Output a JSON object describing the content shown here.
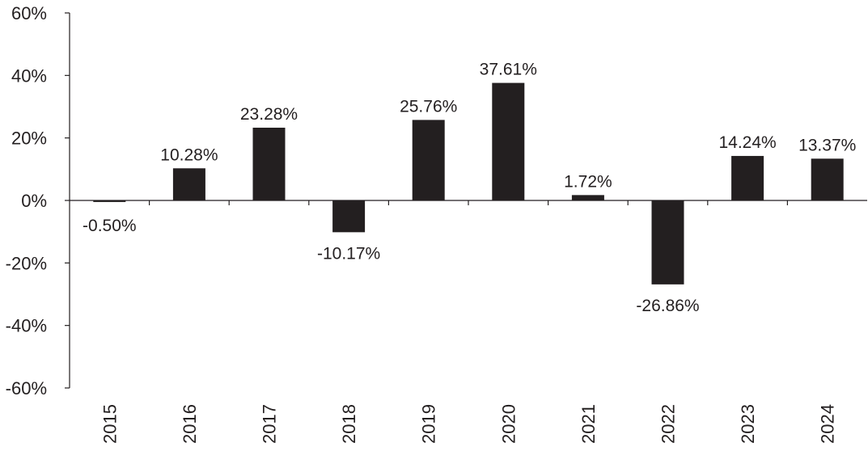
{
  "chart_data": {
    "type": "bar",
    "title": "",
    "xlabel": "",
    "ylabel": "",
    "categories": [
      "2015",
      "2016",
      "2017",
      "2018",
      "2019",
      "2020",
      "2021",
      "2022",
      "2023",
      "2024"
    ],
    "values": [
      -0.5,
      10.28,
      23.28,
      -10.17,
      25.76,
      37.61,
      1.72,
      -26.86,
      14.24,
      13.37
    ],
    "data_labels": [
      "-0.50%",
      "10.28%",
      "23.28%",
      "-10.17%",
      "25.76%",
      "37.61%",
      "1.72%",
      "-26.86%",
      "14.24%",
      "13.37%"
    ],
    "ylim": [
      -60,
      60
    ],
    "yticks": [
      60,
      40,
      20,
      0,
      -20,
      -40,
      -60
    ],
    "ytick_labels": [
      "60%",
      "40%",
      "20%",
      "0%",
      "-20%",
      "-40%",
      "-60%"
    ],
    "grid": false,
    "legend": "none",
    "bar_color": "#231f20",
    "axis_color": "#231f20"
  }
}
